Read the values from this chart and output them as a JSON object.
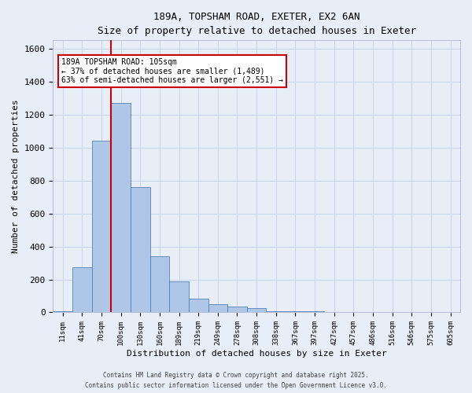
{
  "title_line1": "189A, TOPSHAM ROAD, EXETER, EX2 6AN",
  "title_line2": "Size of property relative to detached houses in Exeter",
  "xlabel": "Distribution of detached houses by size in Exeter",
  "ylabel": "Number of detached properties",
  "bin_labels": [
    "11sqm",
    "41sqm",
    "70sqm",
    "100sqm",
    "130sqm",
    "160sqm",
    "189sqm",
    "219sqm",
    "249sqm",
    "278sqm",
    "308sqm",
    "338sqm",
    "367sqm",
    "397sqm",
    "427sqm",
    "457sqm",
    "486sqm",
    "516sqm",
    "546sqm",
    "575sqm",
    "605sqm"
  ],
  "bar_heights": [
    5,
    275,
    1040,
    1270,
    760,
    340,
    190,
    85,
    50,
    35,
    25,
    5,
    5,
    5,
    3,
    3,
    3,
    2,
    2,
    2,
    2
  ],
  "bar_color": "#aec6e8",
  "bar_edge_color": "#5580b0",
  "property_bin_index": 3,
  "annotation_text": "189A TOPSHAM ROAD: 105sqm\n← 37% of detached houses are smaller (1,489)\n63% of semi-detached houses are larger (2,551) →",
  "annotation_box_color": "#ffffff",
  "annotation_border_color": "#cc0000",
  "ylim": [
    0,
    1650
  ],
  "yticks": [
    0,
    200,
    400,
    600,
    800,
    1000,
    1200,
    1400,
    1600
  ],
  "vline_color": "#cc0000",
  "grid_color": "#c8d4e8",
  "background_color": "#e8eef8",
  "footer_line1": "Contains HM Land Registry data © Crown copyright and database right 2025.",
  "footer_line2": "Contains public sector information licensed under the Open Government Licence v3.0."
}
